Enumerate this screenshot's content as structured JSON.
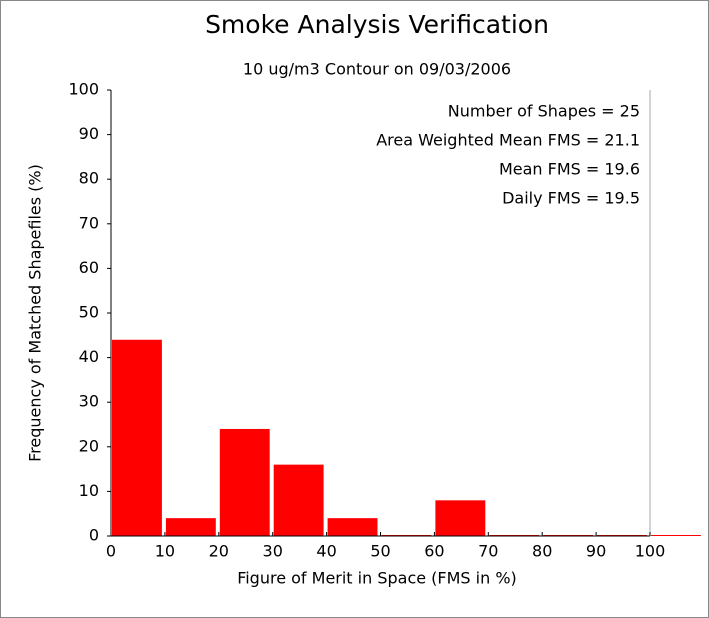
{
  "chart_data": {
    "type": "histogram",
    "title": "Smoke Analysis Verification",
    "subtitle": "10 ug/m3 Contour on 09/03/2006",
    "x_label": "Figure of Merit in Space (FMS in %)",
    "y_label": "Frequency of Matched Shapefiles (%)",
    "annotations": [
      "Number of Shapes = 25",
      "Area Weighted Mean FMS = 21.1",
      "Mean FMS = 19.6",
      "Daily FMS = 19.5"
    ],
    "bins": [
      0,
      10,
      20,
      30,
      40,
      50,
      60,
      70,
      80,
      90,
      100,
      110
    ],
    "values": [
      44,
      4,
      24,
      16,
      4,
      0,
      8,
      0,
      0,
      0,
      0
    ],
    "color": "#ff0000",
    "xlim": [
      0,
      100
    ],
    "ylim": [
      0,
      100
    ],
    "xticks": [
      0,
      10,
      20,
      30,
      40,
      50,
      60,
      70,
      80,
      90,
      100
    ],
    "yticks": [
      0,
      10,
      20,
      30,
      40,
      50,
      60,
      70,
      80,
      90,
      100
    ]
  }
}
